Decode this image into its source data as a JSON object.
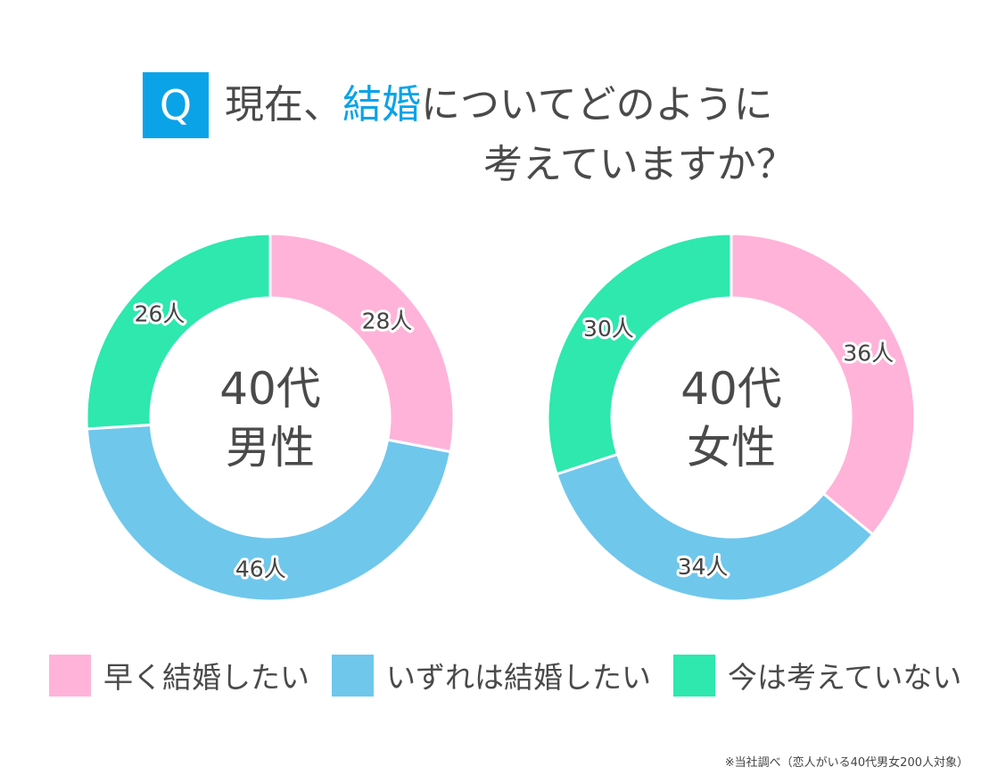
{
  "header": {
    "badge": "Q",
    "title_part1": "現在、",
    "title_accent": "結婚",
    "title_part2": "についてどのように",
    "title_line2": "考えていますか？"
  },
  "colors": {
    "pink": "#ffb3d9",
    "blue": "#6fc7ec",
    "green": "#2ee8ae",
    "accent": "#0aa3e8"
  },
  "chart_data": [
    {
      "type": "pie",
      "variant": "donut",
      "center_line1": "40代",
      "center_line2": "男性",
      "categories": [
        "早く結婚したい",
        "いずれは結婚したい",
        "今は考えていない"
      ],
      "values": [
        28,
        46,
        26
      ],
      "labels": [
        "28人",
        "46人",
        "26人"
      ]
    },
    {
      "type": "pie",
      "variant": "donut",
      "center_line1": "40代",
      "center_line2": "女性",
      "categories": [
        "早く結婚したい",
        "いずれは結婚したい",
        "今は考えていない"
      ],
      "values": [
        36,
        34,
        30
      ],
      "labels": [
        "36人",
        "34人",
        "30人"
      ]
    }
  ],
  "legend": [
    {
      "label": "早く結婚したい",
      "color": "#ffb3d9"
    },
    {
      "label": "いずれは結婚したい",
      "color": "#6fc7ec"
    },
    {
      "label": "今は考えていない",
      "color": "#2ee8ae"
    }
  ],
  "footnote": "※当社調べ（恋人がいる40代男女200人対象）"
}
